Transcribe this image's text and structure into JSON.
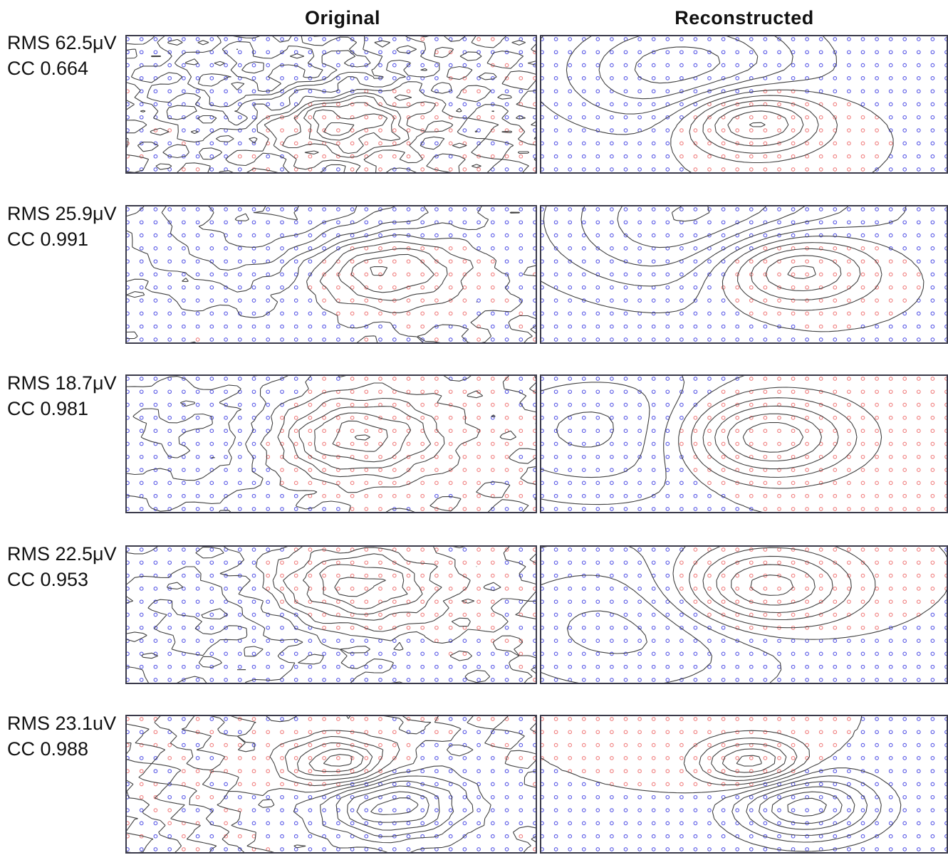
{
  "columns": [
    "Original",
    "Reconstructed"
  ],
  "rows": [
    {
      "rms": "RMS 62.5μV",
      "cc": "CC 0.664"
    },
    {
      "rms": "RMS 25.9μV",
      "cc": "CC 0.991"
    },
    {
      "rms": "RMS 18.7μV",
      "cc": "CC 0.981"
    },
    {
      "rms": "RMS 22.5μV",
      "cc": "CC 0.953"
    },
    {
      "rms": "RMS 23.1uV",
      "cc": "CC 0.988"
    }
  ],
  "colors": {
    "positive": "#f08080",
    "negative": "#5a5ae6",
    "contour": "#404040",
    "frame": "#3a3a4a"
  }
}
